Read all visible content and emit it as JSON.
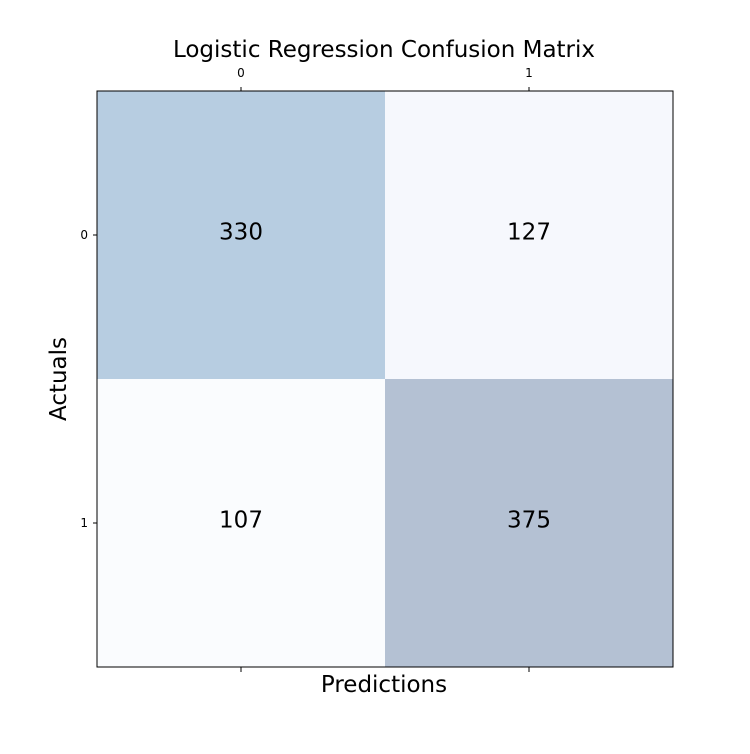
{
  "chart_data": {
    "type": "heatmap",
    "title": "Logistic Regression Confusion Matrix",
    "xlabel": "Predictions",
    "ylabel": "Actuals",
    "x_categories": [
      "0",
      "1"
    ],
    "y_categories": [
      "0",
      "1"
    ],
    "values": [
      [
        330,
        127
      ],
      [
        107,
        375
      ]
    ],
    "x_ticks_position": "top-and-bottom",
    "colormap": "Blues",
    "cell_colors": [
      [
        "#b7cde1",
        "#f6f8fd"
      ],
      [
        "#fafcfe",
        "#b4c1d3"
      ]
    ],
    "grid": false,
    "legend": "none"
  }
}
